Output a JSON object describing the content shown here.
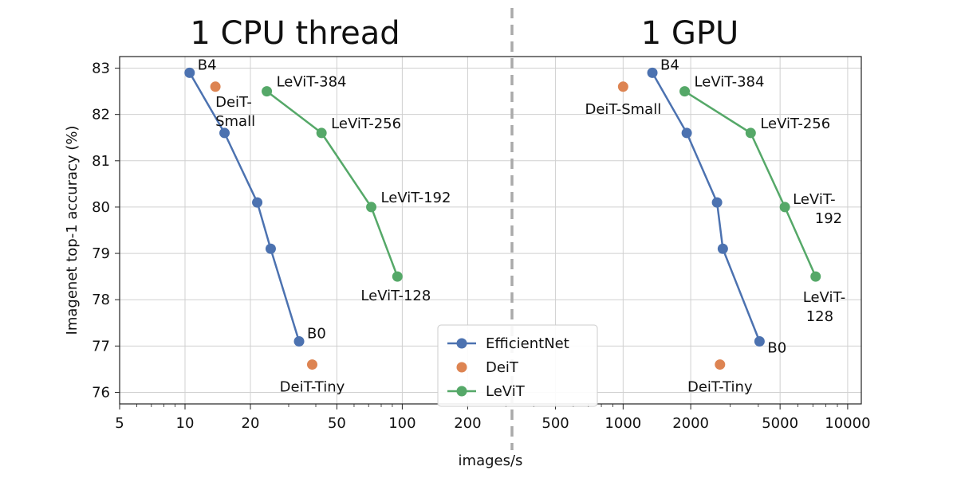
{
  "chart_data": {
    "type": "line",
    "ylabel": "Imagenet top-1 accuracy (%)",
    "xlabel": "images/s",
    "ylim": [
      75.75,
      83.25
    ],
    "y_ticks": [
      76,
      77,
      78,
      79,
      80,
      81,
      82,
      83
    ],
    "grid": true,
    "legend_position": "bottom-center",
    "colors": {
      "EfficientNet": "#4c72b0",
      "DeiT": "#dd8452",
      "LeViT": "#55a868",
      "divider": "#aaaaaa"
    },
    "panels": [
      {
        "title": "1 CPU thread",
        "x_scale": "log",
        "xlim": [
          5,
          320
        ],
        "x_ticks": [
          5,
          10,
          20,
          50,
          100,
          200
        ],
        "series": [
          {
            "name": "EfficientNet",
            "marker": "line",
            "x": [
              10.5,
              15.2,
              21.5,
              24.8,
              33.5
            ],
            "y": [
              82.9,
              81.6,
              80.1,
              79.1,
              77.1
            ]
          },
          {
            "name": "DeiT",
            "marker": "points",
            "x": [
              13.8,
              38.5
            ],
            "y": [
              82.6,
              76.6
            ]
          },
          {
            "name": "LeViT",
            "marker": "line",
            "x": [
              23.8,
              42.5,
              72,
              95
            ],
            "y": [
              82.5,
              81.6,
              80.0,
              78.5
            ]
          }
        ],
        "annotations": [
          {
            "text": [
              "B4"
            ],
            "x": 10.5,
            "y": 82.9,
            "pos": "ur"
          },
          {
            "text": [
              "B0"
            ],
            "x": 33.5,
            "y": 77.1,
            "pos": "ur"
          },
          {
            "text": [
              "DeiT-",
              "Small"
            ],
            "x": 13.8,
            "y": 82.6,
            "pos": "below-right"
          },
          {
            "text": [
              "DeiT-Tiny"
            ],
            "x": 38.5,
            "y": 76.6,
            "pos": "below"
          },
          {
            "text": [
              "LeViT-384"
            ],
            "x": 23.8,
            "y": 82.5,
            "pos": "right"
          },
          {
            "text": [
              "LeViT-256"
            ],
            "x": 42.5,
            "y": 81.6,
            "pos": "right"
          },
          {
            "text": [
              "LeViT-192"
            ],
            "x": 72,
            "y": 80.0,
            "pos": "right"
          },
          {
            "text": [
              "LeViT-128"
            ],
            "x": 95,
            "y": 78.5,
            "pos": "below-left"
          }
        ]
      },
      {
        "title": "1 GPU",
        "x_scale": "log",
        "xlim": [
          320,
          11500
        ],
        "x_ticks": [
          500,
          1000,
          2000,
          5000,
          10000
        ],
        "series": [
          {
            "name": "EfficientNet",
            "marker": "line",
            "x": [
              1350,
              1920,
              2620,
              2780,
              4050
            ],
            "y": [
              82.9,
              81.6,
              80.1,
              79.1,
              77.1
            ]
          },
          {
            "name": "DeiT",
            "marker": "points",
            "x": [
              1000,
              2700
            ],
            "y": [
              82.6,
              76.6
            ]
          },
          {
            "name": "LeViT",
            "marker": "line",
            "x": [
              1880,
              3700,
              5250,
              7200
            ],
            "y": [
              82.5,
              81.6,
              80.0,
              78.5
            ]
          }
        ],
        "annotations": [
          {
            "text": [
              "B4"
            ],
            "x": 1350,
            "y": 82.9,
            "pos": "ur"
          },
          {
            "text": [
              "B0"
            ],
            "x": 4050,
            "y": 77.1,
            "pos": "lr"
          },
          {
            "text": [
              "DeiT-Small"
            ],
            "x": 1000,
            "y": 82.6,
            "pos": "below"
          },
          {
            "text": [
              "DeiT-Tiny"
            ],
            "x": 2700,
            "y": 76.6,
            "pos": "below"
          },
          {
            "text": [
              "LeViT-384"
            ],
            "x": 1880,
            "y": 82.5,
            "pos": "right"
          },
          {
            "text": [
              "LeViT-256"
            ],
            "x": 3700,
            "y": 81.6,
            "pos": "right"
          },
          {
            "text": [
              "LeViT-",
              "192"
            ],
            "x": 5250,
            "y": 80.0,
            "pos": "right-stack"
          },
          {
            "text": [
              "LeViT-",
              "128"
            ],
            "x": 7200,
            "y": 78.5,
            "pos": "below-stack"
          }
        ]
      }
    ],
    "legend": [
      "EfficientNet",
      "DeiT",
      "LeViT"
    ]
  }
}
